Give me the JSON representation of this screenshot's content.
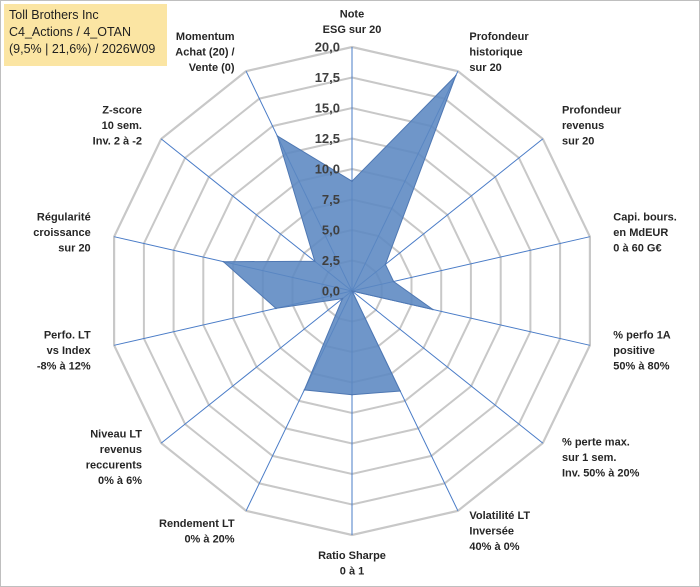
{
  "header": {
    "line1": "Toll Brothers Inc",
    "line2": "C4_Actions / 4_OTAN",
    "line3": "(9,5% | 21,6%) / 2026W09"
  },
  "chart_data": {
    "type": "radar",
    "title": "Toll Brothers Inc",
    "rmin": 0,
    "rmax": 20,
    "tick_labels": [
      "0,0",
      "2,5",
      "5,0",
      "7,5",
      "10,0",
      "12,5",
      "15,0",
      "17,5",
      "20,0"
    ],
    "axes": [
      {
        "label": [
          "Note",
          "ESG sur 20"
        ]
      },
      {
        "label": [
          "Profondeur",
          "historique",
          "sur 20"
        ]
      },
      {
        "label": [
          "Profondeur",
          "revenus",
          "sur 20"
        ]
      },
      {
        "label": [
          "Capi. bours.",
          "en MdEUR",
          "0 à 60 G€"
        ]
      },
      {
        "label": [
          "% perfo 1A",
          "positive",
          "50% à 80%"
        ]
      },
      {
        "label": [
          "% perte max.",
          "sur 1 sem.",
          "Inv. 50% à 20%"
        ]
      },
      {
        "label": [
          "Volatilité LT",
          "Inversée",
          "40% à 0%"
        ]
      },
      {
        "label": [
          "Ratio Sharpe",
          "0 à 1"
        ]
      },
      {
        "label": [
          "Rendement LT",
          "0% à 20%"
        ]
      },
      {
        "label": [
          "Niveau LT",
          "revenus",
          "reccurents",
          "0% à 6%"
        ]
      },
      {
        "label": [
          "Perfo. LT",
          "vs Index",
          "-8% à 12%"
        ]
      },
      {
        "label": [
          "Régularité",
          "croissance",
          "sur 20"
        ]
      },
      {
        "label": [
          "Z-score",
          "10 sem.",
          "Inv. 2 à -2"
        ]
      },
      {
        "label": [
          "Momentum",
          "Achat (20) /",
          "Vente (0)"
        ]
      }
    ],
    "series": [
      {
        "name": "Toll Brothers Inc",
        "color": "#5b87c2",
        "values": [
          9.0,
          19.6,
          3.5,
          3.5,
          6.8,
          0.0,
          9.1,
          8.5,
          9.0,
          1.0,
          6.4,
          10.8,
          3.9,
          14.1
        ]
      }
    ]
  }
}
